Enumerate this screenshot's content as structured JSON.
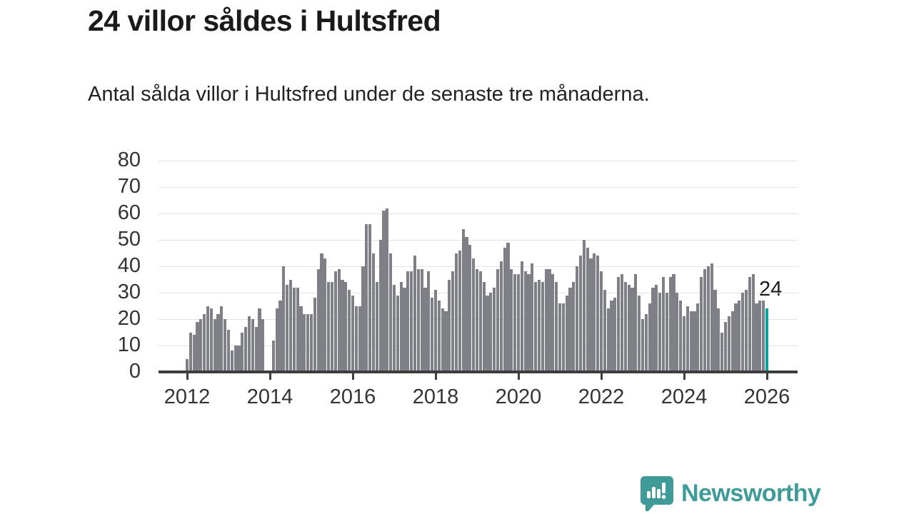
{
  "header": {
    "title": "24 villor såldes i Hultsfred",
    "subtitle": "Antal sålda villor i Hultsfred under de senaste tre månaderna."
  },
  "chart_data": {
    "type": "bar",
    "title": "24 villor såldes i Hultsfred",
    "subtitle": "Antal sålda villor i Hultsfred under de senaste tre månaderna.",
    "x_start": "2012-01",
    "frequency": "monthly",
    "values": [
      5,
      15,
      14,
      19,
      20,
      22,
      25,
      24,
      20,
      22,
      25,
      20,
      16,
      8,
      10,
      10,
      15,
      17,
      21,
      20,
      17,
      24,
      20,
      0,
      0,
      12,
      24,
      27,
      40,
      33,
      35,
      32,
      32,
      25,
      22,
      22,
      22,
      28,
      39,
      45,
      43,
      34,
      34,
      38,
      39,
      35,
      34,
      31,
      29,
      25,
      25,
      40,
      56,
      56,
      45,
      34,
      50,
      61,
      62,
      45,
      33,
      29,
      34,
      32,
      38,
      38,
      44,
      39,
      39,
      32,
      38,
      28,
      31,
      27,
      24,
      23,
      35,
      38,
      45,
      46,
      54,
      51,
      48,
      43,
      39,
      38,
      34,
      29,
      30,
      32,
      39,
      42,
      47,
      49,
      39,
      37,
      37,
      42,
      38,
      37,
      41,
      34,
      35,
      34,
      39,
      39,
      37,
      34,
      26,
      26,
      29,
      32,
      34,
      40,
      44,
      50,
      47,
      43,
      45,
      44,
      38,
      31,
      24,
      27,
      28,
      36,
      37,
      34,
      33,
      32,
      37,
      29,
      20,
      22,
      26,
      32,
      33,
      30,
      36,
      30,
      36,
      37,
      30,
      27,
      21,
      25,
      23,
      23,
      26,
      36,
      39,
      40,
      41,
      31,
      24,
      15,
      19,
      21,
      23,
      26,
      27,
      30,
      31,
      36,
      37,
      26,
      27,
      27,
      24
    ],
    "highlight": {
      "index": 168,
      "value": 24,
      "label": "24",
      "color": "#0ba29c"
    },
    "bar_color": "#7f7f87",
    "ylim": [
      0,
      80
    ],
    "yticks": [
      0,
      10,
      20,
      30,
      40,
      50,
      60,
      70,
      80
    ],
    "xticks": [
      "2012",
      "2014",
      "2016",
      "2018",
      "2020",
      "2022",
      "2024",
      "2026"
    ],
    "grid": true,
    "legend": "none"
  },
  "annotation": {
    "last_value_label": "24"
  },
  "footer": {
    "brand": "Newsworthy",
    "brand_color": "#3f9b98"
  }
}
